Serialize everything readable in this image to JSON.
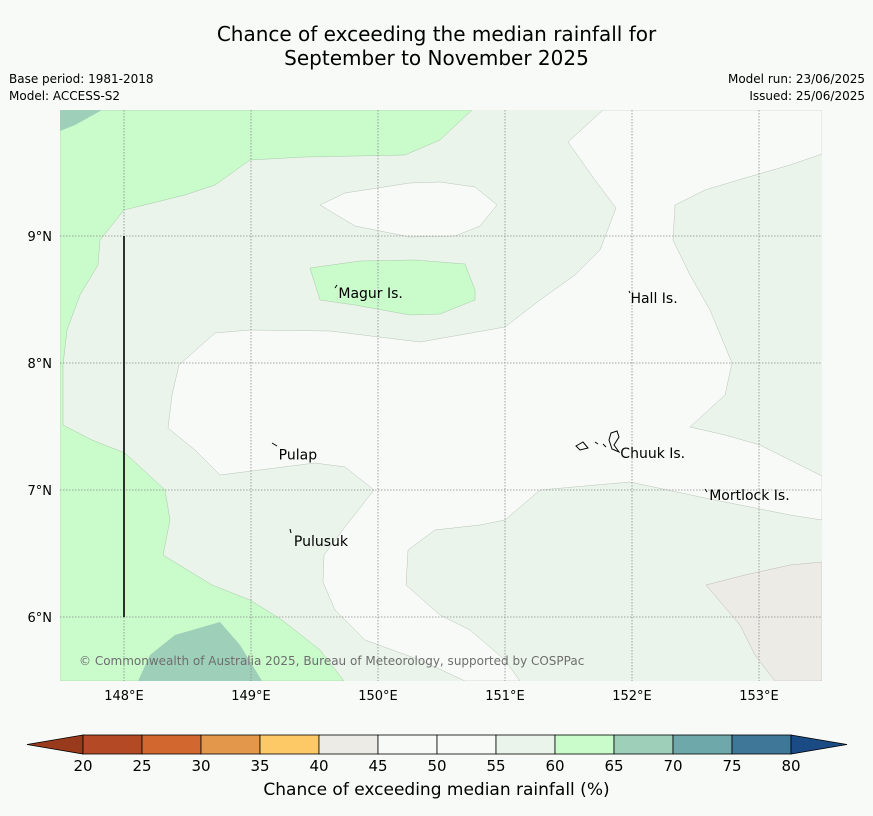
{
  "title_line1": "Chance of exceeding the median rainfall for",
  "title_line2": "September to November 2025",
  "base_period": "Base period: 1981-2018",
  "model": "Model: ACCESS-S2",
  "model_run": "Model run: 23/06/2025",
  "issued": "Issued: 25/06/2025",
  "copyright": "© Commonwealth of Australia 2025, Bureau of Meteorology, supported by COSPPac",
  "lon_ticks": [
    "148°E",
    "149°E",
    "150°E",
    "151°E",
    "152°E",
    "153°E"
  ],
  "lat_ticks": [
    "9°N",
    "8°N",
    "7°N",
    "6°N"
  ],
  "places": [
    {
      "name": "Magur Is.",
      "lon": 149.68,
      "lat": 8.55
    },
    {
      "name": "Hall Is.",
      "lon": 151.98,
      "lat": 8.51
    },
    {
      "name": "Pulap",
      "lon": 149.21,
      "lat": 7.28
    },
    {
      "name": "Chuuk Is.",
      "lon": 151.9,
      "lat": 7.29
    },
    {
      "name": "Mortlock Is.",
      "lon": 152.6,
      "lat": 6.96
    },
    {
      "name": "Pulusuk",
      "lon": 149.33,
      "lat": 6.6
    }
  ],
  "colorbar": {
    "label": "Chance of exceeding median rainfall (%)",
    "ticks": [
      "20",
      "25",
      "30",
      "35",
      "40",
      "45",
      "50",
      "55",
      "60",
      "65",
      "70",
      "75",
      "80"
    ],
    "colors": [
      "#b34a25",
      "#d2672f",
      "#e2974b",
      "#fdc967",
      "#edebe6",
      "#f8faf7",
      "#f8faf7",
      "#eaf4ea",
      "#c9fbcb",
      "#9dcfb9",
      "#6fa8aa",
      "#3f7799"
    ],
    "under_color": "#993a1c",
    "over_color": "#1a4b85"
  }
}
